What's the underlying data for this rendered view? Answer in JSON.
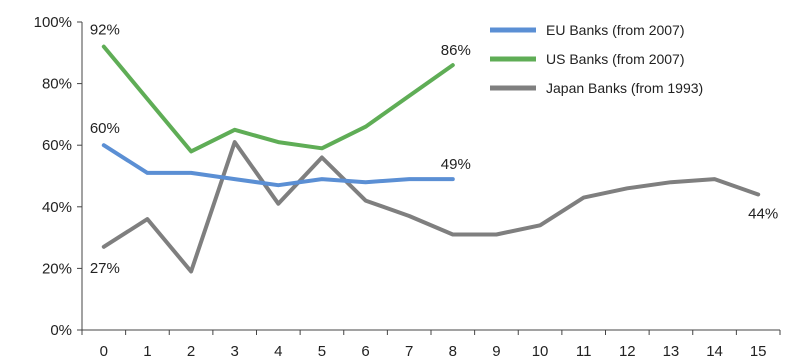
{
  "chart_data": {
    "type": "line",
    "title": "",
    "xlabel": "",
    "ylabel": "",
    "x": [
      0,
      1,
      2,
      3,
      4,
      5,
      6,
      7,
      8,
      9,
      10,
      11,
      12,
      13,
      14,
      15
    ],
    "xticks": [
      "0",
      "1",
      "2",
      "3",
      "4",
      "5",
      "6",
      "7",
      "8",
      "9",
      "10",
      "11",
      "12",
      "13",
      "14",
      "15"
    ],
    "xlim": [
      -0.5,
      15.5
    ],
    "ylim": [
      0,
      100
    ],
    "yticks": [
      "0%",
      "20%",
      "40%",
      "60%",
      "80%",
      "100%"
    ],
    "ytick_values": [
      0,
      20,
      40,
      60,
      80,
      100
    ],
    "grid": false,
    "legend_position": "top-right",
    "series": [
      {
        "name": "EU Banks (from 2007)",
        "color": "#5b8fd4",
        "x": [
          0,
          1,
          2,
          3,
          4,
          5,
          6,
          7,
          8
        ],
        "values": [
          60,
          51,
          51,
          49,
          47,
          49,
          48,
          49,
          49
        ]
      },
      {
        "name": "US Banks (from 2007)",
        "color": "#5fad56",
        "x": [
          0,
          1,
          2,
          3,
          4,
          5,
          6,
          7,
          8
        ],
        "values": [
          92,
          75,
          58,
          65,
          61,
          59,
          66,
          76,
          86
        ]
      },
      {
        "name": "Japan Banks (from 1993)",
        "color": "#7f7f7f",
        "x": [
          0,
          1,
          2,
          3,
          4,
          5,
          6,
          7,
          8,
          9,
          10,
          11,
          12,
          13,
          14,
          15
        ],
        "values": [
          27,
          36,
          19,
          61,
          41,
          56,
          42,
          37,
          31,
          31,
          34,
          43,
          46,
          48,
          49,
          44
        ]
      }
    ],
    "annotations": [
      {
        "text": "92%",
        "series": 1,
        "point": 0,
        "anchor": "start",
        "dx": -14,
        "dy": -12
      },
      {
        "text": "60%",
        "series": 0,
        "point": 0,
        "anchor": "start",
        "dx": -14,
        "dy": -12
      },
      {
        "text": "27%",
        "series": 2,
        "point": 0,
        "anchor": "start",
        "dx": -14,
        "dy": 26
      },
      {
        "text": "86%",
        "series": 1,
        "point": 8,
        "anchor": "end",
        "dx": 18,
        "dy": -10
      },
      {
        "text": "49%",
        "series": 0,
        "point": 8,
        "anchor": "end",
        "dx": 18,
        "dy": -10
      },
      {
        "text": "44%",
        "series": 2,
        "point": 15,
        "anchor": "end",
        "dx": 20,
        "dy": 24
      }
    ]
  }
}
